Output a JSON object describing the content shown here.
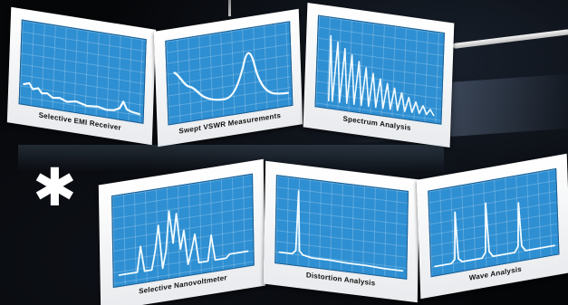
{
  "photo": {
    "background": "dark reflective surface",
    "accent_color": "#2e8fd2",
    "asterisk_glyph": "✱",
    "upper_row": [
      {
        "label": "Selective EMI Receiver",
        "trace": "low noisy trace with small peak at right"
      },
      {
        "label": "Swept VSWR Measurements",
        "trace": "wavy trace with one tall hump"
      },
      {
        "label": "Spectrum Analysis",
        "trace": "descending comb of vertical lines"
      }
    ],
    "lower_row": [
      {
        "label": "Selective Nanovoltmeter",
        "trace": "cluster of sharp peaks"
      },
      {
        "label": "Distortion Analysis",
        "trace": "single tall peak at left"
      },
      {
        "label": "Wave Analysis",
        "trace": "three sharp peaks"
      }
    ]
  }
}
